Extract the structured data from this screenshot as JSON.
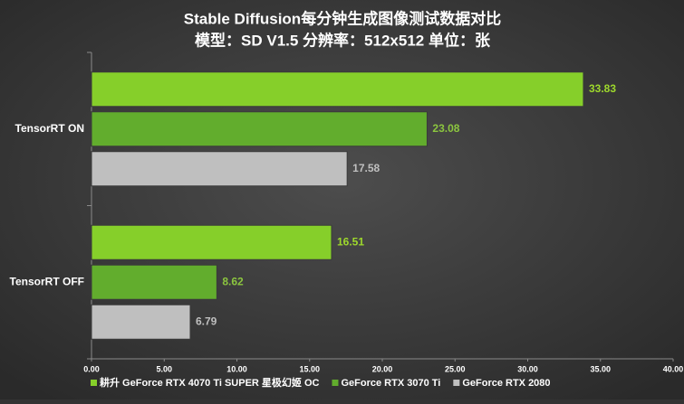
{
  "chart_data": {
    "type": "bar",
    "orientation": "horizontal",
    "title": "Stable Diffusion每分钟生成图像测试数据对比",
    "subtitle": "模型：SD V1.5  分辨率：512x512 单位：张",
    "categories": [
      "TensorRT ON",
      "TensorRT OFF"
    ],
    "series": [
      {
        "name": "耕升 GeForce RTX 4070 Ti SUPER 星极幻姬 OC",
        "color": "#86cf2a",
        "label_color": "#9ed92c",
        "values": [
          33.83,
          16.51
        ]
      },
      {
        "name": "GeForce RTX 3070 Ti",
        "color": "#62ad2d",
        "label_color": "#8cc63f",
        "values": [
          23.08,
          8.62
        ]
      },
      {
        "name": "GeForce RTX 2080",
        "color": "#bfbfbf",
        "label_color": "#bfbfbf",
        "values": [
          17.58,
          6.79
        ]
      }
    ],
    "xlim": [
      0,
      40
    ],
    "xticks": [
      {
        "value": 0,
        "label": "0.00"
      },
      {
        "value": 5,
        "label": "5.00"
      },
      {
        "value": 10,
        "label": "10.00"
      },
      {
        "value": 15,
        "label": "15.00"
      },
      {
        "value": 20,
        "label": "20.00"
      },
      {
        "value": 25,
        "label": "25.00"
      },
      {
        "value": 30,
        "label": "30.00"
      },
      {
        "value": 35,
        "label": "35.00"
      },
      {
        "value": 40,
        "label": "40.00"
      }
    ],
    "legend": "bottom"
  }
}
